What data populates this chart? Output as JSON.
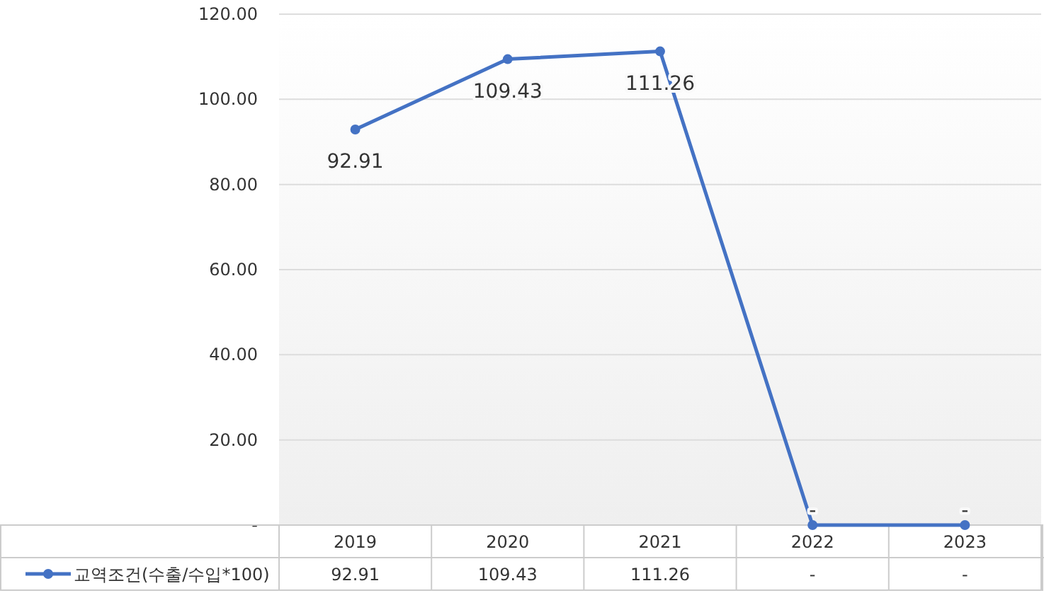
{
  "chart_data": {
    "type": "line",
    "categories": [
      "2019",
      "2020",
      "2021",
      "2022",
      "2023"
    ],
    "series": [
      {
        "name": "교역조건(수출/수입*100)",
        "color": "#4472c4",
        "values": [
          92.91,
          109.43,
          111.26,
          0,
          0
        ],
        "value_labels": [
          "92.91",
          "109.43",
          "111.26",
          "-",
          "-"
        ]
      }
    ],
    "ylim": [
      0,
      120
    ],
    "yticks": [
      {
        "value": 0,
        "label": "-"
      },
      {
        "value": 20,
        "label": "20.00"
      },
      {
        "value": 40,
        "label": "40.00"
      },
      {
        "value": 60,
        "label": "60.00"
      },
      {
        "value": 80,
        "label": "80.00"
      },
      {
        "value": 100,
        "label": "100.00"
      },
      {
        "value": 120,
        "label": "120.00"
      }
    ],
    "grid": "y",
    "marker": "circle",
    "line_style": "solid",
    "legend": "bottom"
  }
}
